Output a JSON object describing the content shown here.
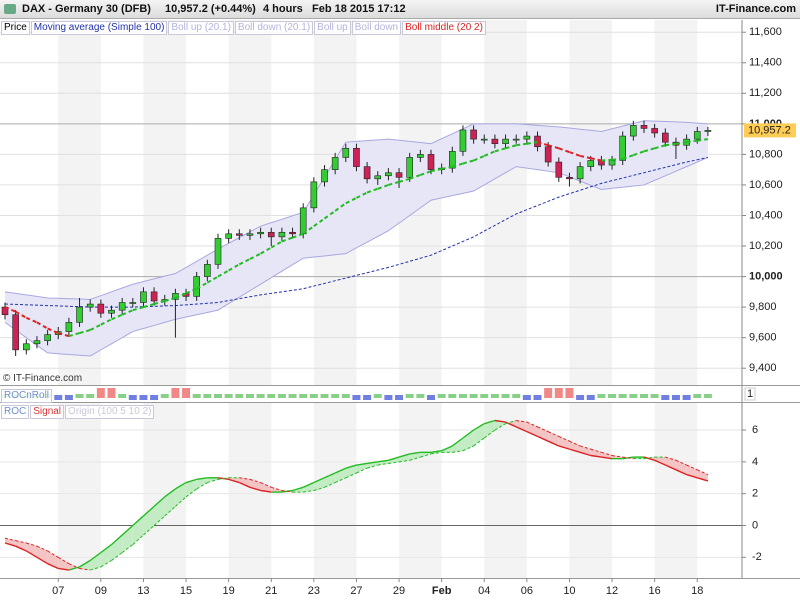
{
  "header": {
    "title": "DAX - Germany 30 (DFB)",
    "quote": "10,957.2 (+0.44%)",
    "interval": "4 hours",
    "timestamp": "Feb 18 2015 17:12",
    "brand": "IT-Finance.com"
  },
  "chart_data": [
    {
      "type": "candlestick",
      "watermark": "© IT-Finance.com",
      "legend": [
        {
          "name": "Price",
          "color": "#000000"
        },
        {
          "name": "Moving average (Simple 100)",
          "color": "#2233aa"
        },
        {
          "name": "Boll up (20.1)",
          "color": "#b4b4dc"
        },
        {
          "name": "Boll down (20.1)",
          "color": "#b4b4dc"
        },
        {
          "name": "Boll up",
          "color": "#b4b4dc"
        },
        {
          "name": "Boll down",
          "color": "#b4b4dc"
        },
        {
          "name": "Boll middle (20 2)",
          "color": "#dd2222"
        }
      ],
      "open": [
        9800,
        9750,
        9520,
        9560,
        9580,
        9620,
        9640,
        9700,
        9800,
        9820,
        9760,
        9780,
        9830,
        9830,
        9900,
        9840,
        9850,
        9890,
        9870,
        10000,
        10080,
        10250,
        10280,
        10270,
        10280,
        10290,
        10260,
        10290,
        10280,
        10450,
        10620,
        10700,
        10780,
        10840,
        10720,
        10640,
        10660,
        10680,
        10650,
        10780,
        10800,
        10700,
        10710,
        10820,
        10960,
        10900,
        10900,
        10870,
        10900,
        10900,
        10920,
        10850,
        10750,
        10650,
        10640,
        10720,
        10760,
        10730,
        10760,
        10920,
        10990,
        10970,
        10940,
        10880,
        10860,
        10900,
        10950
      ],
      "high": [
        9830,
        9780,
        9590,
        9610,
        9650,
        9670,
        9730,
        9860,
        9850,
        9850,
        9810,
        9860,
        9860,
        9930,
        9930,
        9880,
        9920,
        9920,
        10030,
        10110,
        10280,
        10310,
        10310,
        10310,
        10320,
        10320,
        10320,
        10320,
        10480,
        10650,
        10730,
        10810,
        10870,
        10870,
        10750,
        10690,
        10710,
        10710,
        10810,
        10830,
        10830,
        10740,
        10850,
        10990,
        10990,
        10930,
        10930,
        10930,
        10930,
        10950,
        10950,
        10880,
        10780,
        10680,
        10750,
        10790,
        10790,
        10790,
        10950,
        11020,
        11020,
        11000,
        10970,
        10910,
        10930,
        10980,
        10980
      ],
      "low": [
        9720,
        9480,
        9490,
        9530,
        9550,
        9590,
        9610,
        9670,
        9770,
        9730,
        9730,
        9750,
        9800,
        9800,
        9810,
        9810,
        9600,
        9840,
        9840,
        9970,
        10050,
        10220,
        10240,
        10240,
        10250,
        10200,
        10230,
        10250,
        10250,
        10420,
        10590,
        10670,
        10750,
        10690,
        10610,
        10600,
        10630,
        10580,
        10620,
        10750,
        10670,
        10670,
        10680,
        10790,
        10870,
        10870,
        10840,
        10840,
        10870,
        10870,
        10820,
        10720,
        10620,
        10590,
        10610,
        10690,
        10700,
        10700,
        10730,
        10890,
        10940,
        10910,
        10850,
        10770,
        10830,
        10870,
        10920
      ],
      "close": [
        9750,
        9520,
        9560,
        9580,
        9620,
        9640,
        9700,
        9800,
        9820,
        9760,
        9780,
        9830,
        9830,
        9900,
        9840,
        9850,
        9890,
        9870,
        10000,
        10080,
        10250,
        10280,
        10270,
        10280,
        10290,
        10260,
        10290,
        10280,
        10450,
        10620,
        10700,
        10780,
        10840,
        10720,
        10640,
        10660,
        10680,
        10650,
        10780,
        10800,
        10700,
        10710,
        10820,
        10960,
        10900,
        10900,
        10870,
        10900,
        10900,
        10920,
        10850,
        10750,
        10650,
        10640,
        10720,
        10760,
        10730,
        10760,
        10920,
        10990,
        10970,
        10940,
        10880,
        10860,
        10900,
        10950,
        10957.2
      ],
      "last_label": "10,957.2",
      "last_label_color": "#ffcc55",
      "up_color": "#33cc33",
      "down_color": "#cc2255",
      "ma": [
        9820,
        9818,
        9815,
        9813,
        9810,
        9808,
        9805,
        9803,
        9800,
        9800,
        9800,
        9800,
        9800,
        9803,
        9805,
        9808,
        9810,
        9815,
        9820,
        9825,
        9830,
        9843,
        9855,
        9868,
        9880,
        9890,
        9900,
        9910,
        9920,
        9938,
        9955,
        9973,
        9990,
        10008,
        10025,
        10043,
        10060,
        10080,
        10100,
        10120,
        10140,
        10170,
        10200,
        10230,
        10260,
        10298,
        10335,
        10373,
        10410,
        10438,
        10465,
        10493,
        10520,
        10543,
        10565,
        10588,
        10610,
        10628,
        10645,
        10663,
        10680,
        10698,
        10715,
        10733,
        10750,
        10765,
        10780
      ],
      "ma_color": "#2233aa",
      "boll_upper": [
        9900,
        9890,
        9880,
        9870,
        9860,
        9858,
        9855,
        9853,
        9850,
        9875,
        9900,
        9925,
        9950,
        9968,
        9985,
        10003,
        10020,
        10060,
        10100,
        10140,
        10180,
        10218,
        10255,
        10293,
        10330,
        10353,
        10375,
        10398,
        10420,
        10535,
        10650,
        10765,
        10880,
        10885,
        10890,
        10895,
        10900,
        10893,
        10885,
        10878,
        10870,
        10903,
        10935,
        10968,
        11000,
        11000,
        11000,
        11000,
        11000,
        10995,
        10990,
        10985,
        10980,
        10973,
        10965,
        10958,
        10950,
        10968,
        10985,
        11003,
        11020,
        11018,
        11015,
        11013,
        11010,
        11005,
        11000
      ],
      "boll_lower": [
        9700,
        9650,
        9600,
        9550,
        9500,
        9495,
        9490,
        9485,
        9480,
        9520,
        9560,
        9600,
        9640,
        9660,
        9680,
        9700,
        9720,
        9735,
        9750,
        9765,
        9780,
        9823,
        9865,
        9908,
        9950,
        9993,
        10035,
        10078,
        10120,
        10128,
        10135,
        10143,
        10150,
        10188,
        10225,
        10263,
        10300,
        10350,
        10400,
        10450,
        10500,
        10515,
        10530,
        10545,
        10560,
        10600,
        10640,
        10680,
        10720,
        10710,
        10700,
        10690,
        10680,
        10653,
        10625,
        10598,
        10570,
        10578,
        10585,
        10593,
        10600,
        10630,
        10660,
        10690,
        10720,
        10750,
        10780
      ],
      "boll_middle": [
        9800,
        9770,
        9730,
        9700,
        9660,
        9630,
        9610,
        9630,
        9650,
        9685,
        9720,
        9750,
        9780,
        9800,
        9820,
        9840,
        9860,
        9890,
        9920,
        9960,
        10000,
        10040,
        10080,
        10115,
        10150,
        10190,
        10230,
        10255,
        10280,
        10330,
        10380,
        10430,
        10480,
        10515,
        10550,
        10575,
        10600,
        10620,
        10640,
        10665,
        10690,
        10705,
        10720,
        10740,
        10760,
        10790,
        10820,
        10840,
        10860,
        10870,
        10880,
        10860,
        10840,
        10815,
        10790,
        10775,
        10760,
        10765,
        10770,
        10795,
        10820,
        10840,
        10860,
        10870,
        10880,
        10890,
        10900
      ],
      "band_color": "#a8a8e0",
      "band_fill": "#e6e6f7",
      "rising_color": "#22bb22",
      "falling_color": "#dd2222",
      "ylim": [
        9290,
        11680
      ],
      "yticks": [
        {
          "value": 11600,
          "label": "11,600"
        },
        {
          "value": 11400,
          "label": "11,400"
        },
        {
          "value": 11200,
          "label": "11,200"
        },
        {
          "value": 11000,
          "label": "11,000"
        },
        {
          "value": 10800,
          "label": "10,800"
        },
        {
          "value": 10600,
          "label": "10,600"
        },
        {
          "value": 10400,
          "label": "10,400"
        },
        {
          "value": 10200,
          "label": "10,200"
        },
        {
          "value": 10000,
          "label": "10,000"
        },
        {
          "value": 9800,
          "label": "9,800"
        },
        {
          "value": 9600,
          "label": "9,600"
        },
        {
          "value": 9400,
          "label": "9,400"
        }
      ],
      "grid": true
    },
    {
      "type": "strip",
      "label": "ROCnRoll",
      "values": [
        0,
        0,
        0,
        0,
        0,
        -1,
        -1,
        0,
        0,
        1,
        1,
        0,
        -1,
        -1,
        -1,
        0,
        1,
        1,
        0,
        0,
        0,
        0,
        0,
        0,
        0,
        0,
        0,
        0,
        0,
        0,
        0,
        0,
        0,
        -1,
        -1,
        0,
        -1,
        -1,
        0,
        0,
        -1,
        0,
        0,
        0,
        0,
        0,
        0,
        0,
        0,
        -1,
        -1,
        1,
        1,
        1,
        -1,
        -1,
        0,
        0,
        0,
        0,
        0,
        0,
        -1,
        -1,
        -1,
        0,
        0
      ],
      "colors": [
        "#7080e0",
        "#88d088",
        "#f08888"
      ],
      "yticks": [
        1
      ]
    },
    {
      "type": "line",
      "note": "Origin (100 5 10 2)",
      "categories": [
        null,
        null,
        null,
        null,
        null,
        "07",
        null,
        null,
        null,
        "09",
        null,
        null,
        null,
        "13",
        null,
        null,
        null,
        "15",
        null,
        null,
        null,
        "19",
        null,
        null,
        null,
        "21",
        null,
        null,
        null,
        "23",
        null,
        null,
        null,
        "27",
        null,
        null,
        null,
        "29",
        null,
        null,
        null,
        "Feb",
        null,
        null,
        null,
        "04",
        null,
        null,
        null,
        "06",
        null,
        null,
        null,
        "10",
        null,
        null,
        null,
        "12",
        null,
        null,
        null,
        "16",
        null,
        null,
        null,
        "18",
        null
      ],
      "series": [
        {
          "name": "ROC",
          "color": "#6f8fd0",
          "values": [
            -1.1,
            -1.3,
            -1.6,
            -2.0,
            -2.4,
            -2.7,
            -2.8,
            -2.6,
            -2.2,
            -1.7,
            -1.2,
            -0.6,
            0.0,
            0.6,
            1.2,
            1.8,
            2.3,
            2.7,
            2.9,
            3.0,
            3.0,
            2.9,
            2.7,
            2.4,
            2.2,
            2.1,
            2.1,
            2.2,
            2.4,
            2.7,
            3.0,
            3.3,
            3.6,
            3.8,
            3.9,
            4.0,
            4.1,
            4.3,
            4.5,
            4.6,
            4.6,
            4.7,
            5.0,
            5.5,
            6.0,
            6.4,
            6.6,
            6.5,
            6.2,
            5.9,
            5.6,
            5.3,
            5.0,
            4.8,
            4.6,
            4.4,
            4.3,
            4.2,
            4.2,
            4.3,
            4.3,
            4.1,
            3.8,
            3.5,
            3.2,
            3.0,
            2.8
          ]
        },
        {
          "name": "Signal",
          "color": "#dd3333",
          "dashed": true,
          "values": [
            -0.8,
            -0.95,
            -1.1,
            -1.3,
            -1.6,
            -2.0,
            -2.4,
            -2.7,
            -2.8,
            -2.6,
            -2.2,
            -1.7,
            -1.2,
            -0.6,
            0.0,
            0.6,
            1.2,
            1.8,
            2.3,
            2.7,
            2.9,
            3.0,
            3.0,
            2.9,
            2.7,
            2.4,
            2.2,
            2.1,
            2.1,
            2.2,
            2.4,
            2.7,
            3.0,
            3.3,
            3.6,
            3.8,
            3.9,
            4.0,
            4.1,
            4.3,
            4.5,
            4.6,
            4.6,
            4.7,
            5.0,
            5.5,
            6.0,
            6.4,
            6.6,
            6.5,
            6.2,
            5.9,
            5.6,
            5.3,
            5.0,
            4.8,
            4.6,
            4.4,
            4.3,
            4.2,
            4.2,
            4.3,
            4.3,
            4.1,
            3.8,
            3.5,
            3.2
          ]
        }
      ],
      "rising_color": "#22bb22",
      "falling_color": "#dd2222",
      "fill_up": "#c4ecc4",
      "fill_down": "#f4c4c4",
      "ylim": [
        -3.3,
        7.7
      ],
      "yticks": [
        -2,
        0,
        2,
        4,
        6
      ],
      "grid": true
    }
  ]
}
